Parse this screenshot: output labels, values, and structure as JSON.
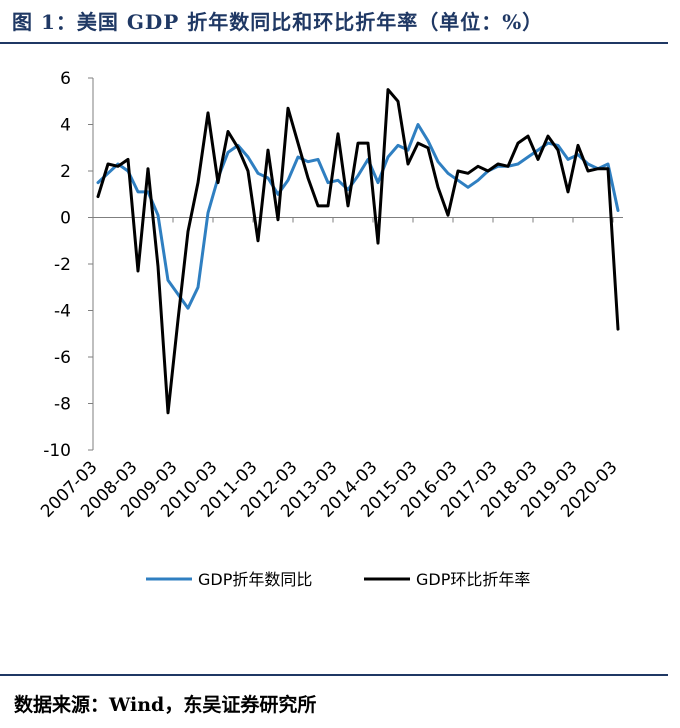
{
  "header": {
    "title": "图 1：美国 GDP 折年数同比和环比折年率（单位：%）"
  },
  "footer": {
    "source": "数据来源：Wind，东吴证券研究所"
  },
  "colors": {
    "yoy": "#2f7fc1",
    "qoq": "#000000",
    "title": "#1f3864"
  },
  "chart_data": {
    "type": "line",
    "title": "",
    "xlabel": "",
    "ylabel": "",
    "ylim": [
      -10,
      6
    ],
    "yticks": [
      6,
      4,
      2,
      0,
      -2,
      -4,
      -6,
      -8,
      -10
    ],
    "xtick_labels": [
      "2007-03",
      "2008-03",
      "2009-03",
      "2010-03",
      "2011-03",
      "2012-03",
      "2013-03",
      "2014-03",
      "2015-03",
      "2016-03",
      "2017-03",
      "2018-03",
      "2019-03",
      "2020-03"
    ],
    "categories": [
      "2007-03",
      "2007-06",
      "2007-09",
      "2007-12",
      "2008-03",
      "2008-06",
      "2008-09",
      "2008-12",
      "2009-03",
      "2009-06",
      "2009-09",
      "2009-12",
      "2010-03",
      "2010-06",
      "2010-09",
      "2010-12",
      "2011-03",
      "2011-06",
      "2011-09",
      "2011-12",
      "2012-03",
      "2012-06",
      "2012-09",
      "2012-12",
      "2013-03",
      "2013-06",
      "2013-09",
      "2013-12",
      "2014-03",
      "2014-06",
      "2014-09",
      "2014-12",
      "2015-03",
      "2015-06",
      "2015-09",
      "2015-12",
      "2016-03",
      "2016-06",
      "2016-09",
      "2016-12",
      "2017-03",
      "2017-06",
      "2017-09",
      "2017-12",
      "2018-03",
      "2018-06",
      "2018-09",
      "2018-12",
      "2019-03",
      "2019-06",
      "2019-09",
      "2019-12",
      "2020-03"
    ],
    "legend_position": "bottom",
    "grid": false,
    "series": [
      {
        "name": "GDP折年数同比",
        "color": "#2f7fc1",
        "values": [
          1.5,
          1.9,
          2.3,
          2.0,
          1.1,
          1.1,
          0.1,
          -2.7,
          -3.3,
          -3.9,
          -3.0,
          0.2,
          1.7,
          2.8,
          3.1,
          2.6,
          1.9,
          1.7,
          1.0,
          1.6,
          2.6,
          2.4,
          2.5,
          1.5,
          1.6,
          1.2,
          1.8,
          2.5,
          1.5,
          2.6,
          3.1,
          2.9,
          4.0,
          3.3,
          2.4,
          1.9,
          1.6,
          1.3,
          1.6,
          2.0,
          2.2,
          2.2,
          2.3,
          2.6,
          2.9,
          3.2,
          3.1,
          2.5,
          2.7,
          2.3,
          2.1,
          2.3,
          0.3
        ]
      },
      {
        "name": "GDP环比折年率",
        "color": "#000000",
        "values": [
          0.9,
          2.3,
          2.2,
          2.5,
          -2.3,
          2.1,
          -2.1,
          -8.4,
          -4.4,
          -0.6,
          1.5,
          4.5,
          1.5,
          3.7,
          3.0,
          2.0,
          -1.0,
          2.9,
          -0.1,
          4.7,
          3.2,
          1.7,
          0.5,
          0.5,
          3.6,
          0.5,
          3.2,
          3.2,
          -1.1,
          5.5,
          5.0,
          2.3,
          3.2,
          3.0,
          1.3,
          0.1,
          2.0,
          1.9,
          2.2,
          2.0,
          2.3,
          2.2,
          3.2,
          3.5,
          2.5,
          3.5,
          2.9,
          1.1,
          3.1,
          2.0,
          2.1,
          2.1,
          -4.8
        ]
      }
    ]
  }
}
